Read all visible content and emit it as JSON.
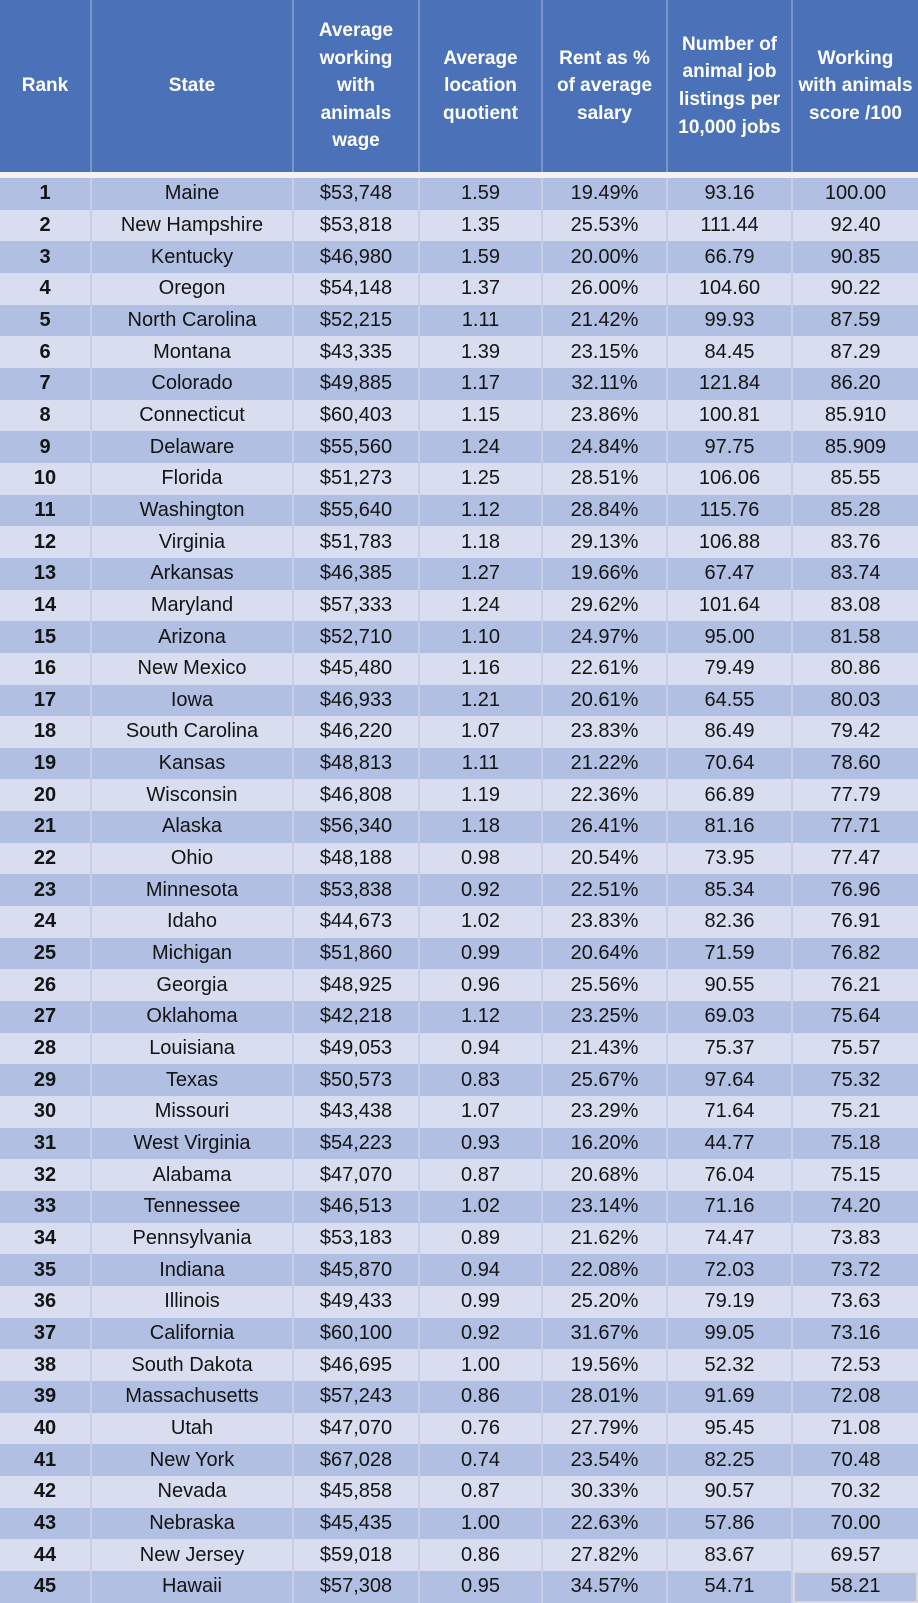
{
  "table": {
    "columns": [
      {
        "id": "rank",
        "label": "Rank"
      },
      {
        "id": "state",
        "label": "State"
      },
      {
        "id": "wage",
        "label": "Average working with animals wage"
      },
      {
        "id": "location_quotient",
        "label": "Average location quotient"
      },
      {
        "id": "rent_percent",
        "label": "Rent as % of average salary"
      },
      {
        "id": "job_listings",
        "label": "Number of animal job listings per 10,000 jobs"
      },
      {
        "id": "score",
        "label": "Working with animals score /100"
      }
    ],
    "rows": [
      [
        "1",
        "Maine",
        "$53,748",
        "1.59",
        "19.49%",
        "93.16",
        "100.00"
      ],
      [
        "2",
        "New Hampshire",
        "$53,818",
        "1.35",
        "25.53%",
        "111.44",
        "92.40"
      ],
      [
        "3",
        "Kentucky",
        "$46,980",
        "1.59",
        "20.00%",
        "66.79",
        "90.85"
      ],
      [
        "4",
        "Oregon",
        "$54,148",
        "1.37",
        "26.00%",
        "104.60",
        "90.22"
      ],
      [
        "5",
        "North Carolina",
        "$52,215",
        "1.11",
        "21.42%",
        "99.93",
        "87.59"
      ],
      [
        "6",
        "Montana",
        "$43,335",
        "1.39",
        "23.15%",
        "84.45",
        "87.29"
      ],
      [
        "7",
        "Colorado",
        "$49,885",
        "1.17",
        "32.11%",
        "121.84",
        "86.20"
      ],
      [
        "8",
        "Connecticut",
        "$60,403",
        "1.15",
        "23.86%",
        "100.81",
        "85.910"
      ],
      [
        "9",
        "Delaware",
        "$55,560",
        "1.24",
        "24.84%",
        "97.75",
        "85.909"
      ],
      [
        "10",
        "Florida",
        "$51,273",
        "1.25",
        "28.51%",
        "106.06",
        "85.55"
      ],
      [
        "11",
        "Washington",
        "$55,640",
        "1.12",
        "28.84%",
        "115.76",
        "85.28"
      ],
      [
        "12",
        "Virginia",
        "$51,783",
        "1.18",
        "29.13%",
        "106.88",
        "83.76"
      ],
      [
        "13",
        "Arkansas",
        "$46,385",
        "1.27",
        "19.66%",
        "67.47",
        "83.74"
      ],
      [
        "14",
        "Maryland",
        "$57,333",
        "1.24",
        "29.62%",
        "101.64",
        "83.08"
      ],
      [
        "15",
        "Arizona",
        "$52,710",
        "1.10",
        "24.97%",
        "95.00",
        "81.58"
      ],
      [
        "16",
        "New Mexico",
        "$45,480",
        "1.16",
        "22.61%",
        "79.49",
        "80.86"
      ],
      [
        "17",
        "Iowa",
        "$46,933",
        "1.21",
        "20.61%",
        "64.55",
        "80.03"
      ],
      [
        "18",
        "South Carolina",
        "$46,220",
        "1.07",
        "23.83%",
        "86.49",
        "79.42"
      ],
      [
        "19",
        "Kansas",
        "$48,813",
        "1.11",
        "21.22%",
        "70.64",
        "78.60"
      ],
      [
        "20",
        "Wisconsin",
        "$46,808",
        "1.19",
        "22.36%",
        "66.89",
        "77.79"
      ],
      [
        "21",
        "Alaska",
        "$56,340",
        "1.18",
        "26.41%",
        "81.16",
        "77.71"
      ],
      [
        "22",
        "Ohio",
        "$48,188",
        "0.98",
        "20.54%",
        "73.95",
        "77.47"
      ],
      [
        "23",
        "Minnesota",
        "$53,838",
        "0.92",
        "22.51%",
        "85.34",
        "76.96"
      ],
      [
        "24",
        "Idaho",
        "$44,673",
        "1.02",
        "23.83%",
        "82.36",
        "76.91"
      ],
      [
        "25",
        "Michigan",
        "$51,860",
        "0.99",
        "20.64%",
        "71.59",
        "76.82"
      ],
      [
        "26",
        "Georgia",
        "$48,925",
        "0.96",
        "25.56%",
        "90.55",
        "76.21"
      ],
      [
        "27",
        "Oklahoma",
        "$42,218",
        "1.12",
        "23.25%",
        "69.03",
        "75.64"
      ],
      [
        "28",
        "Louisiana",
        "$49,053",
        "0.94",
        "21.43%",
        "75.37",
        "75.57"
      ],
      [
        "29",
        "Texas",
        "$50,573",
        "0.83",
        "25.67%",
        "97.64",
        "75.32"
      ],
      [
        "30",
        "Missouri",
        "$43,438",
        "1.07",
        "23.29%",
        "71.64",
        "75.21"
      ],
      [
        "31",
        "West Virginia",
        "$54,223",
        "0.93",
        "16.20%",
        "44.77",
        "75.18"
      ],
      [
        "32",
        "Alabama",
        "$47,070",
        "0.87",
        "20.68%",
        "76.04",
        "75.15"
      ],
      [
        "33",
        "Tennessee",
        "$46,513",
        "1.02",
        "23.14%",
        "71.16",
        "74.20"
      ],
      [
        "34",
        "Pennsylvania",
        "$53,183",
        "0.89",
        "21.62%",
        "74.47",
        "73.83"
      ],
      [
        "35",
        "Indiana",
        "$45,870",
        "0.94",
        "22.08%",
        "72.03",
        "73.72"
      ],
      [
        "36",
        "Illinois",
        "$49,433",
        "0.99",
        "25.20%",
        "79.19",
        "73.63"
      ],
      [
        "37",
        "California",
        "$60,100",
        "0.92",
        "31.67%",
        "99.05",
        "73.16"
      ],
      [
        "38",
        "South Dakota",
        "$46,695",
        "1.00",
        "19.56%",
        "52.32",
        "72.53"
      ],
      [
        "39",
        "Massachusetts",
        "$57,243",
        "0.86",
        "28.01%",
        "91.69",
        "72.08"
      ],
      [
        "40",
        "Utah",
        "$47,070",
        "0.76",
        "27.79%",
        "95.45",
        "71.08"
      ],
      [
        "41",
        "New York",
        "$67,028",
        "0.74",
        "23.54%",
        "82.25",
        "70.48"
      ],
      [
        "42",
        "Nevada",
        "$45,858",
        "0.87",
        "30.33%",
        "90.57",
        "70.32"
      ],
      [
        "43",
        "Nebraska",
        "$45,435",
        "1.00",
        "22.63%",
        "57.86",
        "70.00"
      ],
      [
        "44",
        "New Jersey",
        "$59,018",
        "0.86",
        "27.82%",
        "83.67",
        "69.57"
      ],
      [
        "45",
        "Hawaii",
        "$57,308",
        "0.95",
        "34.57%",
        "54.71",
        "58.21"
      ]
    ]
  },
  "colors": {
    "header_bg": "#4B72B8",
    "header_text": "#FFFFFF",
    "header_divider": "#7B95CB",
    "row_odd_bg": "#B1BFE2",
    "row_even_bg": "#D9DDF0",
    "column_divider": "#C7CEE6",
    "cell_text": "#141414",
    "gap_color": "#F2F2F2",
    "selected_cell_border": "#D9D9D9"
  },
  "chart_data": {
    "type": "table",
    "title": "Working with animals score by US state",
    "columns": [
      "Rank",
      "State",
      "Average working with animals wage",
      "Average location quotient",
      "Rent as % of average salary",
      "Number of animal job listings per 10,000 jobs",
      "Working with animals score /100"
    ],
    "rows": [
      [
        1,
        "Maine",
        53748,
        1.59,
        19.49,
        93.16,
        100.0
      ],
      [
        2,
        "New Hampshire",
        53818,
        1.35,
        25.53,
        111.44,
        92.4
      ],
      [
        3,
        "Kentucky",
        46980,
        1.59,
        20.0,
        66.79,
        90.85
      ],
      [
        4,
        "Oregon",
        54148,
        1.37,
        26.0,
        104.6,
        90.22
      ],
      [
        5,
        "North Carolina",
        52215,
        1.11,
        21.42,
        99.93,
        87.59
      ],
      [
        6,
        "Montana",
        43335,
        1.39,
        23.15,
        84.45,
        87.29
      ],
      [
        7,
        "Colorado",
        49885,
        1.17,
        32.11,
        121.84,
        86.2
      ],
      [
        8,
        "Connecticut",
        60403,
        1.15,
        23.86,
        100.81,
        85.91
      ],
      [
        9,
        "Delaware",
        55560,
        1.24,
        24.84,
        97.75,
        85.909
      ],
      [
        10,
        "Florida",
        51273,
        1.25,
        28.51,
        106.06,
        85.55
      ],
      [
        11,
        "Washington",
        55640,
        1.12,
        28.84,
        115.76,
        85.28
      ],
      [
        12,
        "Virginia",
        51783,
        1.18,
        29.13,
        106.88,
        83.76
      ],
      [
        13,
        "Arkansas",
        46385,
        1.27,
        19.66,
        67.47,
        83.74
      ],
      [
        14,
        "Maryland",
        57333,
        1.24,
        29.62,
        101.64,
        83.08
      ],
      [
        15,
        "Arizona",
        52710,
        1.1,
        24.97,
        95.0,
        81.58
      ],
      [
        16,
        "New Mexico",
        45480,
        1.16,
        22.61,
        79.49,
        80.86
      ],
      [
        17,
        "Iowa",
        46933,
        1.21,
        20.61,
        64.55,
        80.03
      ],
      [
        18,
        "South Carolina",
        46220,
        1.07,
        23.83,
        86.49,
        79.42
      ],
      [
        19,
        "Kansas",
        48813,
        1.11,
        21.22,
        70.64,
        78.6
      ],
      [
        20,
        "Wisconsin",
        46808,
        1.19,
        22.36,
        66.89,
        77.79
      ],
      [
        21,
        "Alaska",
        56340,
        1.18,
        26.41,
        81.16,
        77.71
      ],
      [
        22,
        "Ohio",
        48188,
        0.98,
        20.54,
        73.95,
        77.47
      ],
      [
        23,
        "Minnesota",
        53838,
        0.92,
        22.51,
        85.34,
        76.96
      ],
      [
        24,
        "Idaho",
        44673,
        1.02,
        23.83,
        82.36,
        76.91
      ],
      [
        25,
        "Michigan",
        51860,
        0.99,
        20.64,
        71.59,
        76.82
      ],
      [
        26,
        "Georgia",
        48925,
        0.96,
        25.56,
        90.55,
        76.21
      ],
      [
        27,
        "Oklahoma",
        42218,
        1.12,
        23.25,
        69.03,
        75.64
      ],
      [
        28,
        "Louisiana",
        49053,
        0.94,
        21.43,
        75.37,
        75.57
      ],
      [
        29,
        "Texas",
        50573,
        0.83,
        25.67,
        97.64,
        75.32
      ],
      [
        30,
        "Missouri",
        43438,
        1.07,
        23.29,
        71.64,
        75.21
      ],
      [
        31,
        "West Virginia",
        54223,
        0.93,
        16.2,
        44.77,
        75.18
      ],
      [
        32,
        "Alabama",
        47070,
        0.87,
        20.68,
        76.04,
        75.15
      ],
      [
        33,
        "Tennessee",
        46513,
        1.02,
        23.14,
        71.16,
        74.2
      ],
      [
        34,
        "Pennsylvania",
        53183,
        0.89,
        21.62,
        74.47,
        73.83
      ],
      [
        35,
        "Indiana",
        45870,
        0.94,
        22.08,
        72.03,
        73.72
      ],
      [
        36,
        "Illinois",
        49433,
        0.99,
        25.2,
        79.19,
        73.63
      ],
      [
        37,
        "California",
        60100,
        0.92,
        31.67,
        99.05,
        73.16
      ],
      [
        38,
        "South Dakota",
        46695,
        1.0,
        19.56,
        52.32,
        72.53
      ],
      [
        39,
        "Massachusetts",
        57243,
        0.86,
        28.01,
        91.69,
        72.08
      ],
      [
        40,
        "Utah",
        47070,
        0.76,
        27.79,
        95.45,
        71.08
      ],
      [
        41,
        "New York",
        67028,
        0.74,
        23.54,
        82.25,
        70.48
      ],
      [
        42,
        "Nevada",
        45858,
        0.87,
        30.33,
        90.57,
        70.32
      ],
      [
        43,
        "Nebraska",
        45435,
        1.0,
        22.63,
        57.86,
        70.0
      ],
      [
        44,
        "New Jersey",
        59018,
        0.86,
        27.82,
        83.67,
        69.57
      ],
      [
        45,
        "Hawaii",
        57308,
        0.95,
        34.57,
        54.71,
        58.21
      ]
    ]
  }
}
